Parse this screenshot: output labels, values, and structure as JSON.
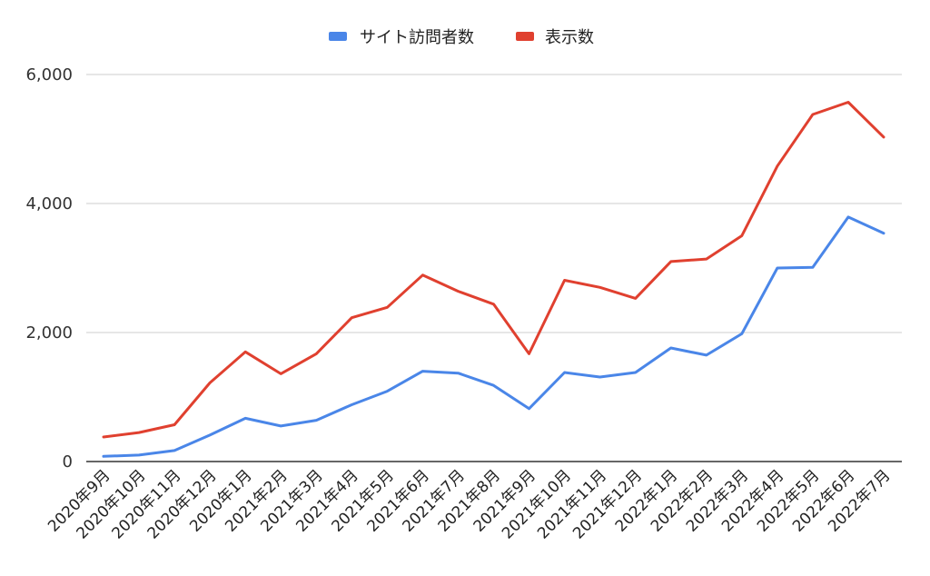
{
  "chart_data": {
    "type": "line",
    "title": "",
    "xlabel": "",
    "ylabel": "",
    "ylim": [
      0,
      6000
    ],
    "yticks": [
      0,
      2000,
      4000,
      6000
    ],
    "ytick_labels": [
      "0",
      "2,000",
      "4,000",
      "6,000"
    ],
    "grid": true,
    "legend_position": "top-center",
    "categories": [
      "2020年9月",
      "2020年10月",
      "2020年11月",
      "2020年12月",
      "2020年1月",
      "2021年2月",
      "2021年3月",
      "2021年4月",
      "2021年5月",
      "2021年6月",
      "2021年7月",
      "2021年8月",
      "2021年9月",
      "2021年10月",
      "2021年11月",
      "2021年12月",
      "2022年1月",
      "2022年2月",
      "2022年3月",
      "2022年4月",
      "2022年5月",
      "2022年6月",
      "2022年7月"
    ],
    "series": [
      {
        "name": "サイト訪問者数",
        "color": "#4a86e8",
        "values": [
          80,
          100,
          170,
          410,
          670,
          550,
          640,
          880,
          1090,
          1400,
          1370,
          1180,
          820,
          1380,
          1310,
          1380,
          1760,
          1650,
          1980,
          3000,
          3010,
          3790,
          3540
        ]
      },
      {
        "name": "表示数",
        "color": "#e0402f",
        "values": [
          380,
          450,
          570,
          1220,
          1700,
          1360,
          1670,
          2230,
          2390,
          2890,
          2640,
          2440,
          1670,
          2810,
          2700,
          2530,
          3100,
          3140,
          3500,
          4580,
          5380,
          5570,
          5030
        ]
      }
    ]
  }
}
